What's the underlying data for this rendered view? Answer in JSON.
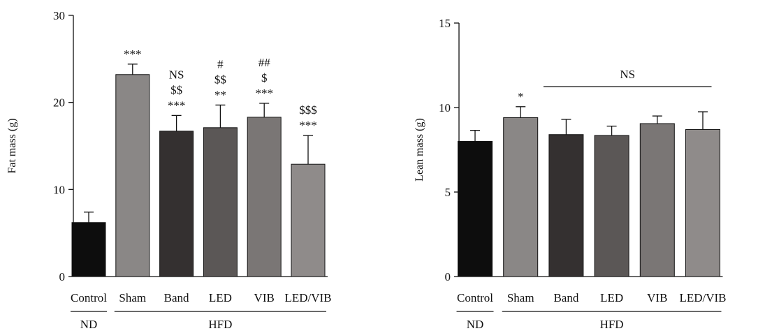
{
  "chart_data": [
    {
      "type": "bar",
      "ylabel": "Fat mass (g)",
      "ylim": [
        0,
        30
      ],
      "yticks": [
        "0",
        "10",
        "20",
        "30"
      ],
      "categories": [
        "Control",
        "Sham",
        "Band",
        "LED",
        "VIB",
        "LED/VIB"
      ],
      "values": [
        6.2,
        23.2,
        16.7,
        17.1,
        18.3,
        12.9
      ],
      "errors": [
        1.2,
        1.2,
        1.8,
        2.6,
        1.6,
        3.3
      ],
      "colors": [
        "#0d0d0d",
        "#8a8786",
        "#343030",
        "#5b5756",
        "#7a7675",
        "#8f8b8a"
      ],
      "annotations": [
        [],
        [
          "***"
        ],
        [
          "NS",
          "$$",
          "***"
        ],
        [
          "#",
          "$$",
          "**"
        ],
        [
          "##",
          "$",
          "***"
        ],
        [
          "$$$",
          "***"
        ]
      ],
      "groups": [
        {
          "label": "ND",
          "from": 0,
          "to": 0
        },
        {
          "label": "HFD",
          "from": 1,
          "to": 5
        }
      ]
    },
    {
      "type": "bar",
      "ylabel": "Lean mass (g)",
      "ylim": [
        0,
        15
      ],
      "yticks": [
        "0",
        "5",
        "10",
        "15"
      ],
      "categories": [
        "Control",
        "Sham",
        "Band",
        "LED",
        "VIB",
        "LED/VIB"
      ],
      "values": [
        8.0,
        9.4,
        8.4,
        8.35,
        9.05,
        8.7
      ],
      "errors": [
        0.65,
        0.65,
        0.9,
        0.55,
        0.45,
        1.05
      ],
      "colors": [
        "#0d0d0d",
        "#8a8786",
        "#343030",
        "#5b5756",
        "#7a7675",
        "#8f8b8a"
      ],
      "annotations": [
        [],
        [
          "*"
        ],
        [],
        [],
        [],
        []
      ],
      "bracket": {
        "label": "NS",
        "from": 2,
        "to": 5
      },
      "groups": [
        {
          "label": "ND",
          "from": 0,
          "to": 0
        },
        {
          "label": "HFD",
          "from": 1,
          "to": 5
        }
      ]
    }
  ]
}
